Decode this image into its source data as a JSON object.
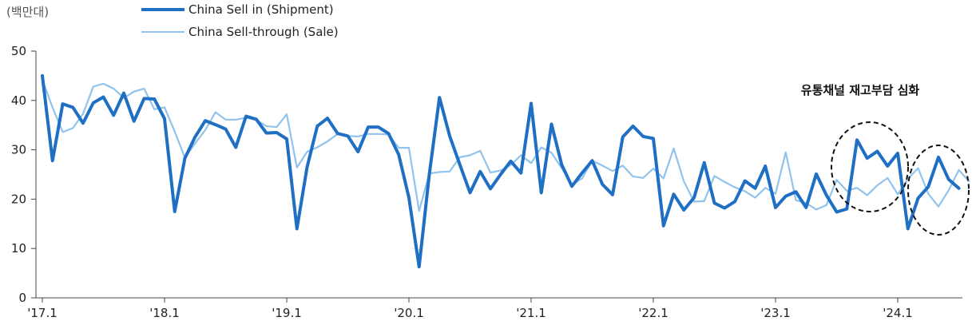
{
  "chart_data": {
    "type": "line",
    "unit_label": "(백만대)",
    "yticks": [
      0,
      10,
      20,
      30,
      40,
      50
    ],
    "ylim": [
      0,
      50
    ],
    "x_tick_labels": [
      "'17.1",
      "'18.1",
      "'19.1",
      "'20.1",
      "'21.1",
      "'22.1",
      "'23.1",
      "'24.1"
    ],
    "legend_position": "top-left",
    "series": [
      {
        "name": "China Sell in (Shipment)",
        "color": "#1f6fc4",
        "values": [
          45,
          27.8,
          39.3,
          38.6,
          35.4,
          39.5,
          40.7,
          37,
          41.5,
          35.8,
          40.4,
          40.3,
          36.3,
          17.5,
          28.3,
          32.6,
          35.9,
          35.1,
          34.2,
          30.5,
          36.8,
          36.2,
          33.4,
          33.5,
          32.2,
          14,
          26.5,
          34.8,
          36.4,
          33.3,
          32.8,
          29.6,
          34.6,
          34.6,
          33.3,
          29,
          20.3,
          6.3,
          25,
          40.6,
          32.8,
          27,
          21.3,
          25.6,
          22.1,
          25,
          27.7,
          25.3,
          39.4,
          21.3,
          35.2,
          27,
          22.6,
          25.3,
          27.8,
          23,
          20.9,
          32.6,
          34.8,
          32.7,
          32.3,
          14.6,
          21,
          17.8,
          20.3,
          27.4,
          19.2,
          18.2,
          19.5,
          23.7,
          22.2,
          26.7,
          18.3,
          20.6,
          21.5,
          18.3,
          25.1,
          20.8,
          17.4,
          18,
          32,
          28.3,
          29.7,
          26.7,
          29.3,
          14,
          20.2,
          22.5,
          28.5,
          24,
          22.2
        ]
      },
      {
        "name": "China Sell-through (Sale)",
        "color": "#92c3ec",
        "values": [
          44.2,
          38.6,
          33.6,
          34.4,
          37.3,
          42.8,
          43.4,
          42.4,
          40.5,
          41.8,
          42.4,
          38.2,
          38.6,
          33.7,
          28.4,
          31.3,
          34,
          37.6,
          36.1,
          36.1,
          36.5,
          36.1,
          34.8,
          34.6,
          37.2,
          26.4,
          29.6,
          30.5,
          31.7,
          33.2,
          32.8,
          32.7,
          33.2,
          33.2,
          33.1,
          30.4,
          30.4,
          17.6,
          25.2,
          25.5,
          25.6,
          28.5,
          28.9,
          29.8,
          25.4,
          25.8,
          26.9,
          28.9,
          27.3,
          30.5,
          29.4,
          26.3,
          22.9,
          24.2,
          27.8,
          26.8,
          25.7,
          26.8,
          24.6,
          24.3,
          26.2,
          24.2,
          30.3,
          23.6,
          19.5,
          19.6,
          24.7,
          23.5,
          22.4,
          21.6,
          20.3,
          22.3,
          21.1,
          29.5,
          19.8,
          19.2,
          17.9,
          18.8,
          23.9,
          21.7,
          22.3,
          20.8,
          22.8,
          24.3,
          21,
          24.1,
          26.3,
          21.1,
          18.5,
          21.8,
          25.9,
          23.6
        ]
      }
    ],
    "annotations": [
      {
        "text": "유통채널 재고부담 심화"
      }
    ]
  }
}
